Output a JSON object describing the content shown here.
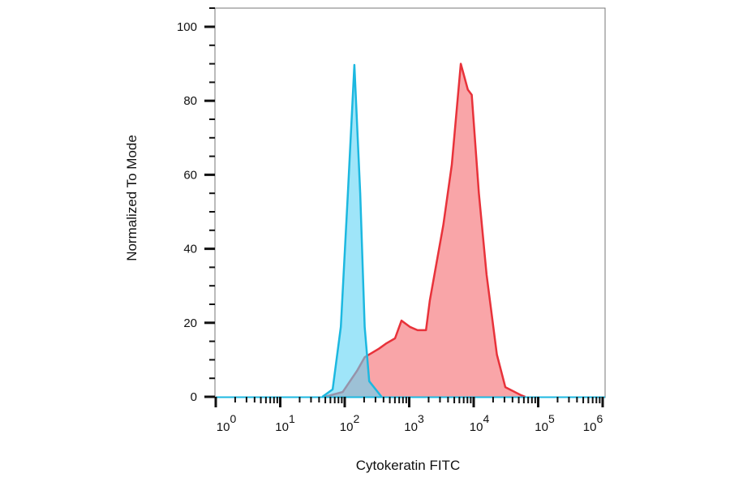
{
  "chart_data": {
    "type": "area",
    "title": "",
    "xlabel": "Cytokeratin FITC",
    "ylabel": "Normalized To Mode",
    "x_scale": "log",
    "xlim": [
      1,
      1000000
    ],
    "ylim": [
      0,
      100
    ],
    "x_tick_base": "10",
    "x_tick_exponents": [
      "0",
      "1",
      "2",
      "3",
      "4",
      "5",
      "6"
    ],
    "y_ticks": [
      "0",
      "20",
      "40",
      "60",
      "80",
      "100"
    ],
    "grid": false,
    "legend": "none",
    "series": [
      {
        "color": "#e8323a",
        "fill": "#f9a0a3",
        "x": [
          49,
          93,
          155,
          204,
          339,
          447,
          603,
          759,
          1023,
          1349,
          1820,
          2089,
          3388,
          4571,
          6310,
          8128,
          9333,
          12023,
          15849,
          22909,
          30903,
          54954,
          63096
        ],
        "y": [
          0,
          1.3,
          7,
          10.7,
          13,
          14.5,
          15.8,
          20.6,
          18.9,
          18,
          18,
          26,
          46.5,
          62.7,
          90,
          83,
          81.6,
          55,
          33,
          11.4,
          2.6,
          0.4,
          0
        ]
      },
      {
        "color": "#1cb8e0",
        "fill": "#5fd3f5",
        "x": [
          45,
          65,
          87,
          112,
          141,
          174,
          204,
          240,
          372
        ],
        "y": [
          0,
          2,
          18.9,
          55,
          89.7,
          55,
          18.9,
          4.2,
          0
        ]
      }
    ]
  }
}
